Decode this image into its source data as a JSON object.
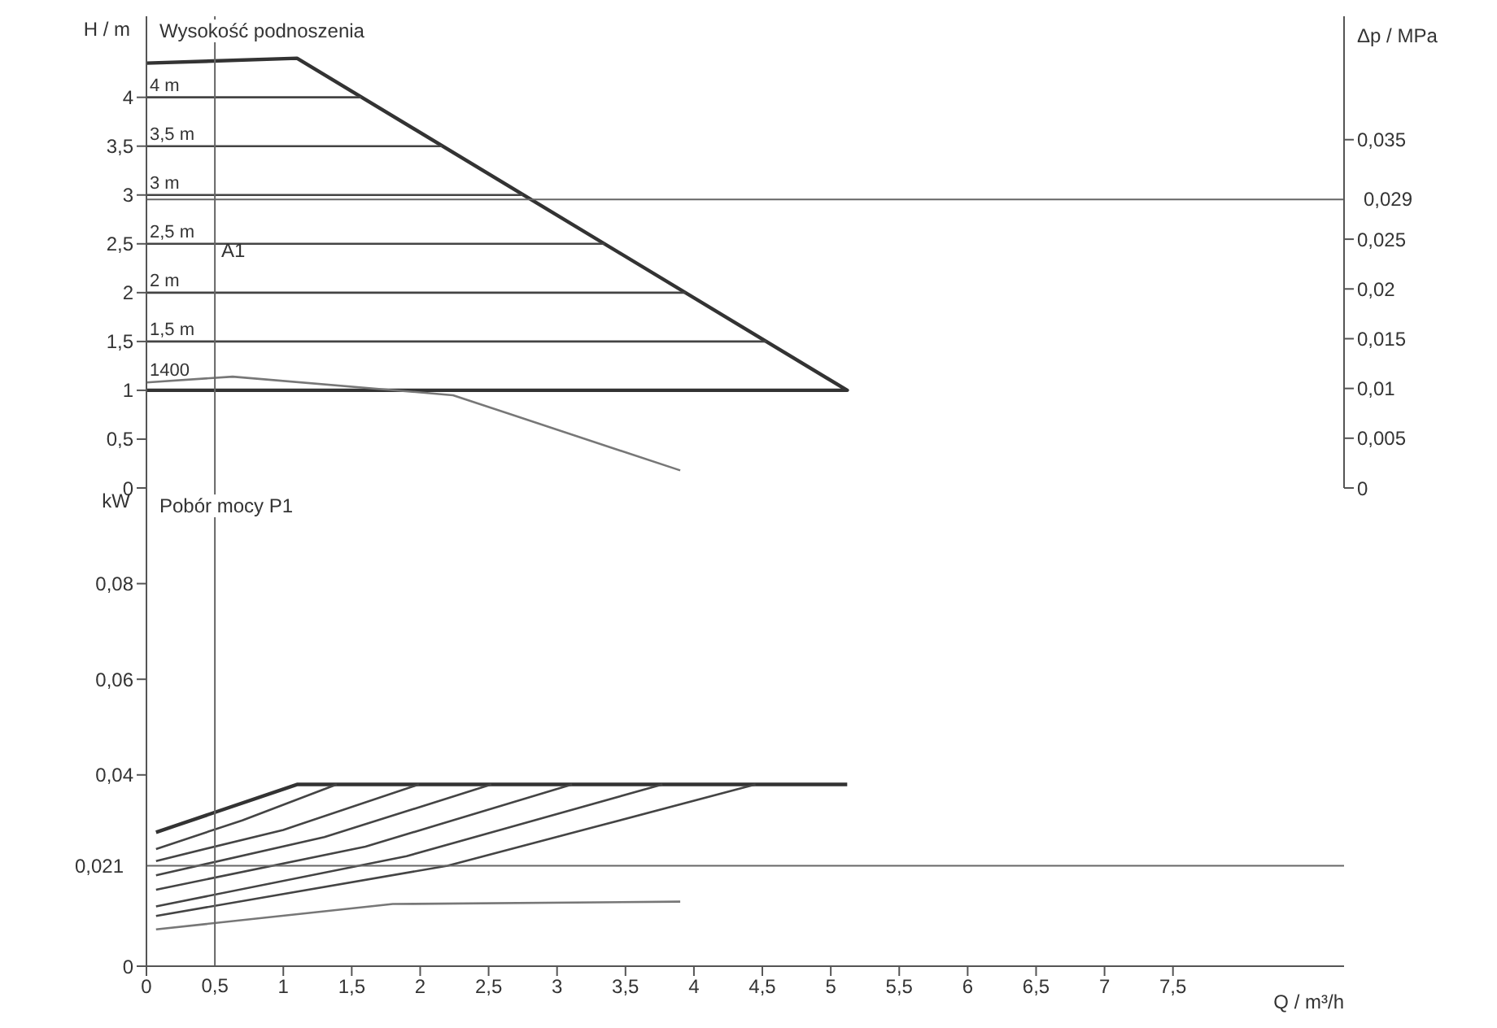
{
  "chart_data": [
    {
      "type": "line",
      "title": "Wysokość podnoszenia",
      "ylabel": "H / m",
      "y2label": "Δp / MPa",
      "xlim": [
        0,
        8.75
      ],
      "xticks": [
        0,
        1,
        1.5,
        2,
        2.5,
        3,
        3.5,
        4,
        4.5,
        5,
        5.5,
        6,
        6.5,
        7,
        7.5
      ],
      "ylim": [
        0,
        4.83
      ],
      "yticks": [
        0,
        {
          "value": 0.5,
          "label": "0,5"
        },
        1,
        {
          "value": 1.5,
          "label": "1,5"
        },
        2,
        {
          "value": 2.5,
          "label": "2,5"
        },
        3,
        {
          "value": 3.5,
          "label": "3,5"
        },
        4
      ],
      "y2lim": [
        0,
        0.0474
      ],
      "y2ticks": [
        0,
        {
          "value": 0.005,
          "label": "0,005"
        },
        {
          "value": 0.01,
          "label": "0,01"
        },
        {
          "value": 0.015,
          "label": "0,015"
        },
        {
          "value": 0.02,
          "label": "0,02"
        },
        {
          "value": 0.025,
          "label": "0,025"
        },
        {
          "value": 0.035,
          "label": "0,035"
        }
      ],
      "tick_labels": "y",
      "series": [
        {
          "color": "#333333",
          "x": [
            0,
            1.1,
            5.12,
            0
          ],
          "values": [
            4.35,
            4.4,
            1,
            1
          ]
        },
        {
          "name": "4 m",
          "color": "#444444",
          "x": [
            0,
            1.57
          ],
          "values": [
            4,
            4
          ]
        },
        {
          "name": "3,5 m",
          "color": "#444444",
          "x": [
            0,
            2.16
          ],
          "values": [
            3.5,
            3.5
          ]
        },
        {
          "name": "3 m",
          "color": "#444444",
          "x": [
            0,
            2.75
          ],
          "values": [
            3,
            3
          ]
        },
        {
          "name": "2,5 m",
          "color": "#444444",
          "x": [
            0,
            3.35
          ],
          "values": [
            2.5,
            2.5
          ]
        },
        {
          "name": "2 m",
          "color": "#444444",
          "x": [
            0,
            3.94
          ],
          "values": [
            2,
            2
          ]
        },
        {
          "name": "1,5 m",
          "color": "#444444",
          "x": [
            0,
            4.53
          ],
          "values": [
            1.5,
            1.5
          ]
        },
        {
          "name": "1400",
          "color": "#777777",
          "x": [
            0,
            0.63,
            2.24,
            3.9
          ],
          "values": [
            1.08,
            1.14,
            0.95,
            0.18
          ]
        }
      ],
      "ref_lines": [
        {
          "axis": "y2",
          "value": 0.029,
          "label": "0,029",
          "color": "#666666"
        },
        {
          "axis": "x",
          "value": 0.5,
          "color": "#666666"
        }
      ],
      "annotations": [
        {
          "text": "A1",
          "x": 0.5,
          "y": 3
        }
      ]
    },
    {
      "type": "line",
      "title": "Pobór mocy P1",
      "ylabel": "kW",
      "xlabel": "Q / m³/h",
      "xlim": [
        0,
        8.75
      ],
      "xticks": [
        0,
        1,
        {
          "value": 1.5,
          "label": "1,5"
        },
        2,
        {
          "value": 2.5,
          "label": "2,5"
        },
        3,
        {
          "value": 3.5,
          "label": "3,5"
        },
        4,
        {
          "value": 4.5,
          "label": "4,5"
        },
        5,
        {
          "value": 5.5,
          "label": "5,5"
        },
        6,
        {
          "value": 6.5,
          "label": "6,5"
        },
        7,
        {
          "value": 7.5,
          "label": "7,5"
        }
      ],
      "ylim": [
        0,
        0.1
      ],
      "yticks": [
        0,
        {
          "value": 0.04,
          "label": "0,04"
        },
        {
          "value": 0.06,
          "label": "0,06"
        },
        {
          "value": 0.08,
          "label": "0,08"
        }
      ],
      "series": [
        {
          "color": "#333333",
          "x": [
            0.07,
            1.1,
            5.12
          ],
          "values": [
            0.028,
            0.038,
            0.038
          ]
        },
        {
          "color": "#444444",
          "x": [
            0.07,
            0.7,
            1.39
          ],
          "values": [
            0.0245,
            0.0305,
            0.038
          ]
        },
        {
          "color": "#444444",
          "x": [
            0.07,
            1.0,
            1.99
          ],
          "values": [
            0.022,
            0.0285,
            0.038
          ]
        },
        {
          "color": "#444444",
          "x": [
            0.07,
            1.3,
            2.52
          ],
          "values": [
            0.019,
            0.027,
            0.038
          ]
        },
        {
          "color": "#444444",
          "x": [
            0.07,
            1.6,
            3.11
          ],
          "values": [
            0.016,
            0.025,
            0.038
          ]
        },
        {
          "color": "#444444",
          "x": [
            0.07,
            1.9,
            3.77
          ],
          "values": [
            0.0125,
            0.023,
            0.038
          ]
        },
        {
          "color": "#444444",
          "x": [
            0.07,
            2.2,
            4.45
          ],
          "values": [
            0.0105,
            0.021,
            0.038
          ]
        },
        {
          "color": "#777777",
          "x": [
            0.07,
            1.8,
            3.9
          ],
          "values": [
            0.0077,
            0.013,
            0.0135
          ]
        }
      ],
      "ref_lines": [
        {
          "axis": "y",
          "value": 0.021,
          "label": "0,021",
          "color": "#666666"
        },
        {
          "axis": "x",
          "value": 0.5,
          "label": "0,5",
          "color": "#666666"
        }
      ]
    }
  ]
}
